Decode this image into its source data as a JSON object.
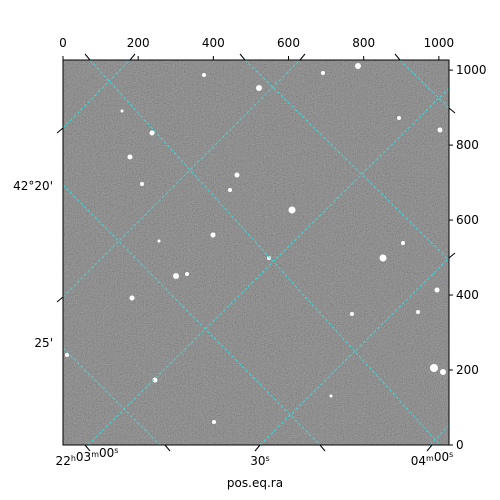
{
  "chart_data": {
    "type": "image",
    "xlabel": "pos.eq.ra",
    "xlim": [
      0,
      1027
    ],
    "ylim": [
      0,
      1027
    ],
    "xticks": [
      0,
      200,
      400,
      600,
      800,
      1000
    ],
    "yticks": [
      0,
      200,
      400,
      600,
      800,
      1000
    ],
    "ra_ticks": [
      "22h03m00s",
      "30s",
      "04m00s"
    ],
    "dec_ticks": [
      "42°20'",
      "25'"
    ]
  }
}
